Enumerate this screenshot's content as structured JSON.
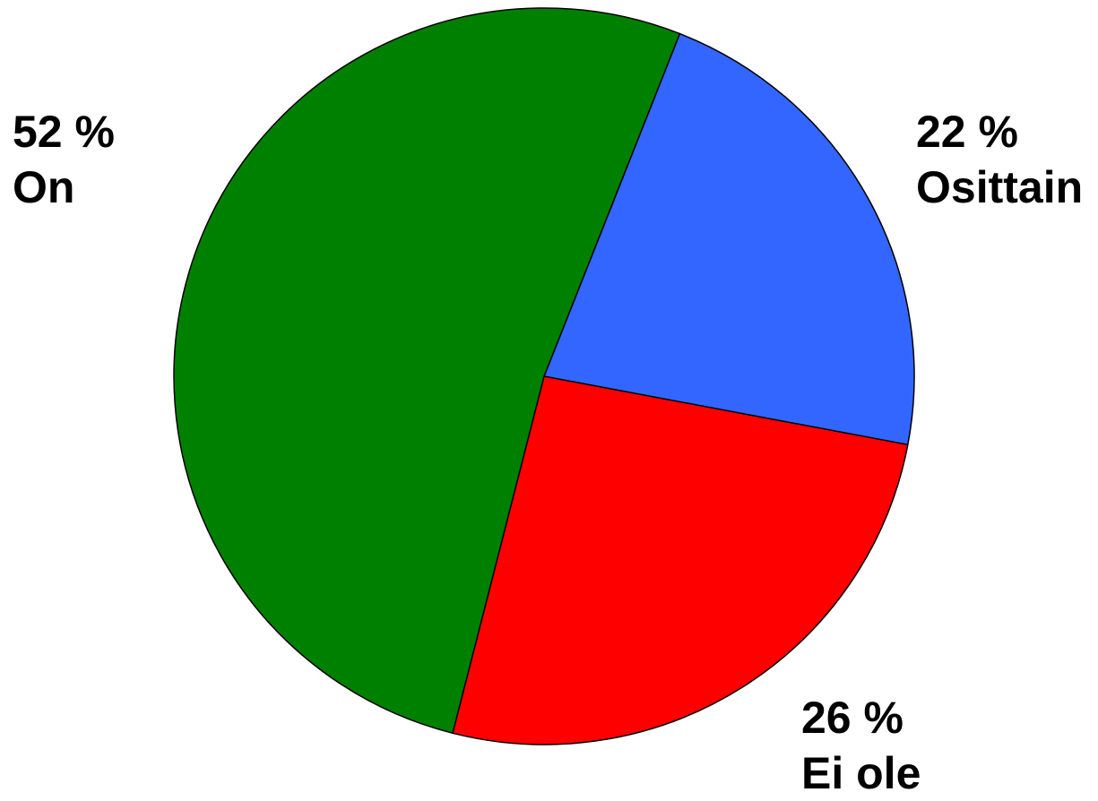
{
  "chart_data": {
    "type": "pie",
    "title": "",
    "start": "top, clockwise",
    "slices": [
      {
        "label": "Osittain",
        "value": 22,
        "percent_text": "22 %",
        "color": "#3366ff"
      },
      {
        "label": "Ei ole",
        "value": 26,
        "percent_text": "26 %",
        "color": "#ff0000"
      },
      {
        "label": "On",
        "value": 52,
        "percent_text": "52 %",
        "color": "#008000"
      }
    ]
  }
}
